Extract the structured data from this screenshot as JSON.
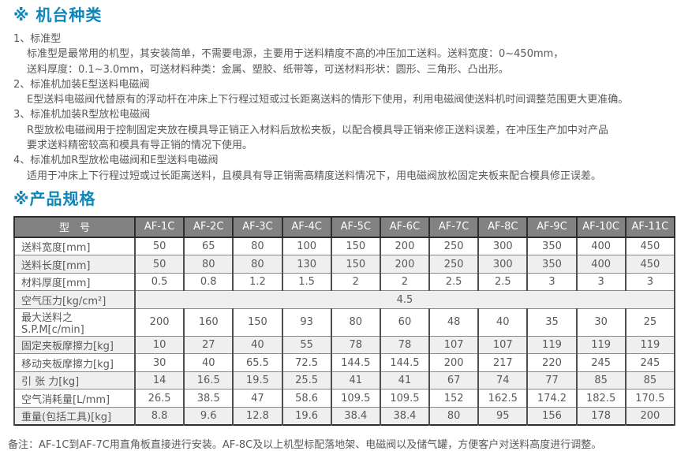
{
  "colors": {
    "accent_blue": "#0d87bb",
    "table_header_bg": "#828282",
    "row_stripe": "#efefef",
    "body_text": "#595959"
  },
  "section_types": {
    "title": "※ 机台种类",
    "items": [
      {
        "heading": "1、标准型",
        "lines": [
          "标准型是最常用的机型，其安装简单，不需要电源，主要用于送料精度不高的冲压加工送料。送料宽度：0~450mm，",
          "送料厚度：0.1~3.0mm，可送材料种类：金属、塑胶、纸带等，可送材料形状：圆形、三角形、凸出形。"
        ]
      },
      {
        "heading": "2、标准机加装E型送料电磁阀",
        "lines": [
          "E型送料电磁阀代替原有的浮动杆在冲床上下行程过短或过长距离送料的情形下使用，利用电磁阀使送料机时间调整范围更大更准确。"
        ]
      },
      {
        "heading": "3、标准机加装R型放松电磁阀",
        "lines": [
          "R型放松电磁阀用于控制固定夹放在模具导正销正入材料后放松夹板，以配合模具导正销来修正送料误差，在冲压生产加中对产品",
          "要求送料精密较高和模具有导正销的情况下使用。"
        ]
      },
      {
        "heading": "4、标准机加R型放松电磁阀和E型送料电磁阀",
        "lines": [
          "适用于冲床上下行程过短或过长距离送料，且模具有导正销需高精度送料情况下，用电磁阀放松固定夹板来配合模具修正误差。"
        ]
      }
    ]
  },
  "section_specs": {
    "title": "※产品规格",
    "note": "备注：AF-1C到AF-7C用直角板直接进行安装。AF-8C及以上机型标配落地架、电磁阀以及储气罐，方便客户对送料高度进行调整。"
  },
  "spec_table": {
    "header": [
      "型　号",
      "AF-1C",
      "AF-2C",
      "AF-3C",
      "AF-4C",
      "AF-5C",
      "AF-6C",
      "AF-7C",
      "AF-8C",
      "AF-9C",
      "AF-10C",
      "AF-11C"
    ],
    "rows": [
      {
        "label": "送料宽度[mm]",
        "values": [
          "50",
          "65",
          "80",
          "100",
          "150",
          "200",
          "250",
          "300",
          "350",
          "400",
          "450"
        ]
      },
      {
        "label": "送料长度[mm]",
        "values": [
          "50",
          "80",
          "80",
          "130",
          "150",
          "200",
          "250",
          "300",
          "350",
          "400",
          "450"
        ]
      },
      {
        "label": "材料厚度[mm]",
        "values": [
          "0.5",
          "0.8",
          "1.2",
          "1.5",
          "2",
          "2",
          "2.5",
          "2.5",
          "3",
          "3",
          "3"
        ]
      },
      {
        "label": "空气压力[kg/cm²]",
        "merged": "4.5"
      },
      {
        "label": "最大送料之S.P.M[c/min]",
        "values": [
          "200",
          "160",
          "150",
          "93",
          "80",
          "60",
          "48",
          "40",
          "35",
          "30",
          "25"
        ]
      },
      {
        "label": "固定夹板摩擦力[kg]",
        "values": [
          "10",
          "27",
          "40",
          "55",
          "78",
          "78",
          "107",
          "107",
          "119",
          "119",
          "119"
        ]
      },
      {
        "label": "移动夹板摩擦力[kg]",
        "values": [
          "30",
          "40",
          "65.5",
          "72.5",
          "144.5",
          "144.5",
          "200",
          "217",
          "220",
          "245",
          "245"
        ]
      },
      {
        "label": "引 张 力[kg]",
        "values": [
          "14",
          "16.5",
          "19.5",
          "25.5",
          "41",
          "41",
          "67",
          "74",
          "77",
          "85",
          "85"
        ]
      },
      {
        "label": "空气消耗量[L/mm]",
        "values": [
          "26.5",
          "38.5",
          "47",
          "58.6",
          "109.5",
          "109.5",
          "152",
          "162.5",
          "174.2",
          "182.5",
          "170.5"
        ]
      },
      {
        "label": "重量(包括工具)[kg]",
        "values": [
          "8.8",
          "9.6",
          "12.8",
          "19.6",
          "38.4",
          "38.4",
          "80",
          "95",
          "156",
          "178",
          "200"
        ]
      }
    ]
  }
}
